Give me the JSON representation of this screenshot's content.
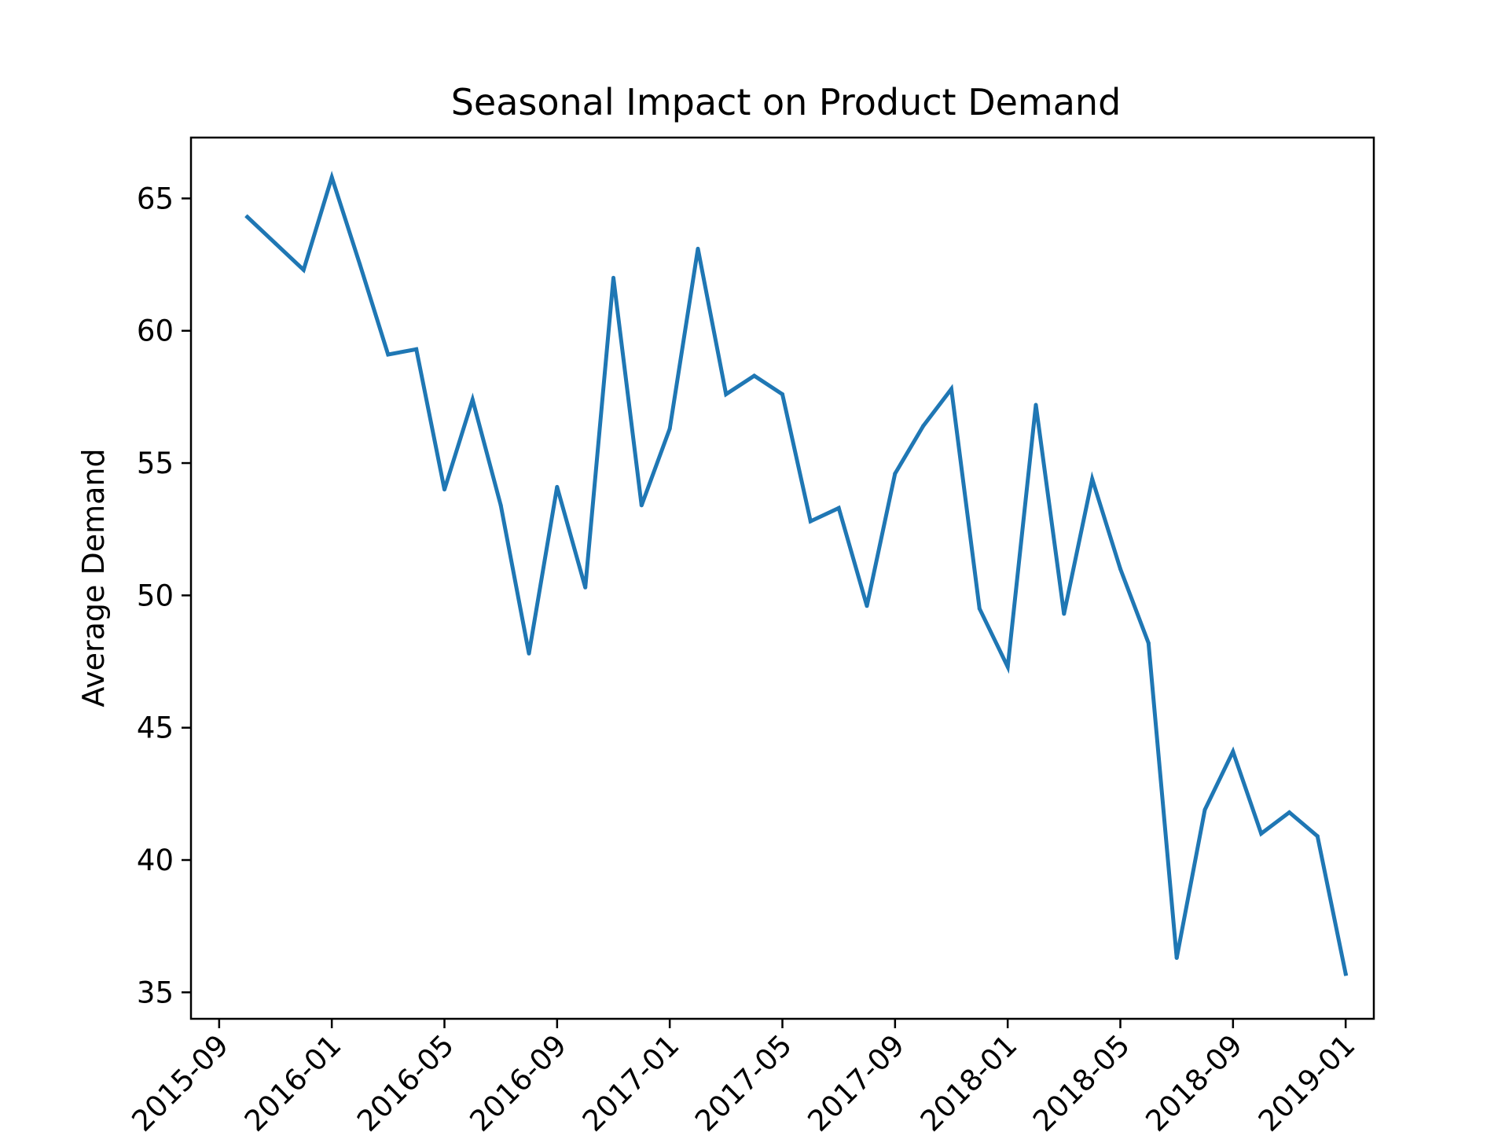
{
  "chart_data": {
    "type": "line",
    "title": "Seasonal Impact on Product Demand",
    "xlabel": "",
    "ylabel": "Average Demand",
    "x_tick_labels": [
      "2015-09",
      "2016-01",
      "2016-05",
      "2016-09",
      "2017-01",
      "2017-05",
      "2017-09",
      "2018-01",
      "2018-05",
      "2018-09",
      "2019-01"
    ],
    "y_tick_labels": [
      "35",
      "40",
      "45",
      "50",
      "55",
      "60",
      "65"
    ],
    "y_ticks": [
      35,
      40,
      45,
      50,
      55,
      60,
      65
    ],
    "ylim": [
      34.0,
      67.3
    ],
    "xlim": [
      "2015-08-01",
      "2019-02-01"
    ],
    "grid": false,
    "series": [
      {
        "color": "#1f77b4",
        "x": [
          "2015-10",
          "2015-11",
          "2015-12",
          "2016-01",
          "2016-02",
          "2016-03",
          "2016-04",
          "2016-05",
          "2016-06",
          "2016-07",
          "2016-08",
          "2016-09",
          "2016-10",
          "2016-11",
          "2016-12",
          "2017-01",
          "2017-02",
          "2017-03",
          "2017-04",
          "2017-05",
          "2017-06",
          "2017-07",
          "2017-08",
          "2017-09",
          "2017-10",
          "2017-11",
          "2017-12",
          "2018-01",
          "2018-02",
          "2018-03",
          "2018-04",
          "2018-05",
          "2018-06",
          "2018-07",
          "2018-08",
          "2018-09",
          "2018-10",
          "2018-11",
          "2018-12",
          "2019-01"
        ],
        "values": [
          64.3,
          63.3,
          62.3,
          65.8,
          62.5,
          59.1,
          59.3,
          54.0,
          57.4,
          53.4,
          47.8,
          54.1,
          50.3,
          62.0,
          53.4,
          56.3,
          63.1,
          57.6,
          58.3,
          57.6,
          52.8,
          53.3,
          49.6,
          54.6,
          56.4,
          57.8,
          49.5,
          47.3,
          57.2,
          49.3,
          54.4,
          51.0,
          48.2,
          36.3,
          41.9,
          44.1,
          41.0,
          41.8,
          40.9,
          35.7
        ]
      }
    ]
  }
}
